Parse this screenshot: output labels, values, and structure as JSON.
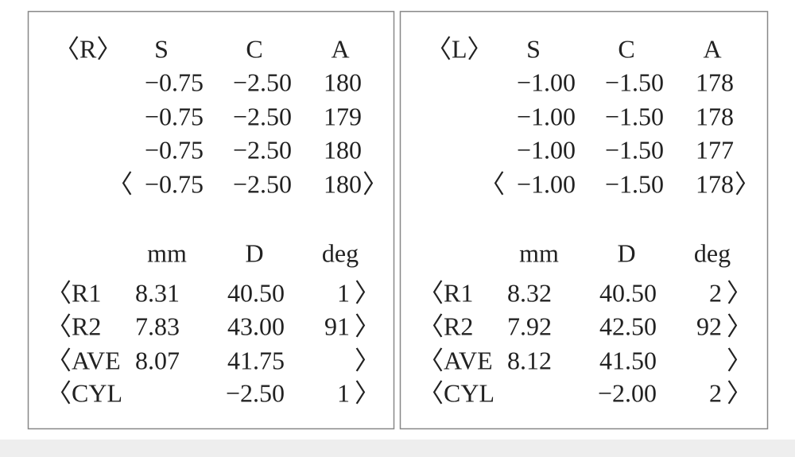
{
  "panels": [
    {
      "eye": "〈R〉",
      "refraction": {
        "headers": [
          "S",
          "C",
          "A"
        ],
        "rows": [
          [
            "−0.75",
            "−2.50",
            "180"
          ],
          [
            "−0.75",
            "−2.50",
            "179"
          ],
          [
            "−0.75",
            "−2.50",
            "180"
          ]
        ],
        "average": {
          "open": "〈",
          "values": [
            "−0.75",
            "−2.50",
            "180"
          ],
          "close": "〉"
        }
      },
      "keratometry": {
        "headers": [
          "mm",
          "D",
          "deg"
        ],
        "rows": [
          {
            "open": "〈",
            "label": "R1",
            "mm": "8.31",
            "d": "40.50",
            "deg": "1",
            "close": "〉"
          },
          {
            "open": "〈",
            "label": "R2",
            "mm": "7.83",
            "d": "43.00",
            "deg": "91",
            "close": "〉"
          },
          {
            "open": "〈",
            "label": "AVE",
            "mm": "8.07",
            "d": "41.75",
            "close": "〉"
          },
          {
            "open": "〈",
            "label": "CYL",
            "d": "−2.50",
            "deg": "1",
            "close": "〉"
          }
        ]
      }
    },
    {
      "eye": "〈L〉",
      "refraction": {
        "headers": [
          "S",
          "C",
          "A"
        ],
        "rows": [
          [
            "−1.00",
            "−1.50",
            "178"
          ],
          [
            "−1.00",
            "−1.50",
            "178"
          ],
          [
            "−1.00",
            "−1.50",
            "177"
          ]
        ],
        "average": {
          "open": "〈",
          "values": [
            "−1.00",
            "−1.50",
            "178"
          ],
          "close": "〉"
        }
      },
      "keratometry": {
        "headers": [
          "mm",
          "D",
          "deg"
        ],
        "rows": [
          {
            "open": "〈",
            "label": "R1",
            "mm": "8.32",
            "d": "40.50",
            "deg": "2",
            "close": "〉"
          },
          {
            "open": "〈",
            "label": "R2",
            "mm": "7.92",
            "d": "42.50",
            "deg": "92",
            "close": "〉"
          },
          {
            "open": "〈",
            "label": "AVE",
            "mm": "8.12",
            "d": "41.50",
            "close": "〉"
          },
          {
            "open": "〈",
            "label": "CYL",
            "d": "−2.00",
            "deg": "2",
            "close": "〉"
          }
        ]
      }
    }
  ]
}
